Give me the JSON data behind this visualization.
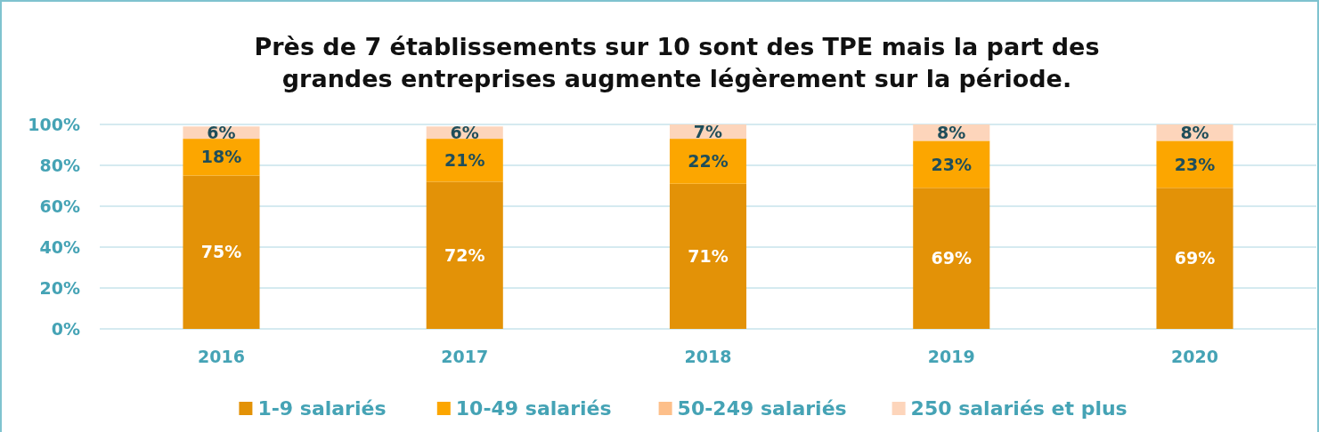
{
  "chart_data": {
    "type": "bar",
    "stacked": true,
    "title": "Près de 7 établissements sur 10 sont des TPE mais la part des grandes entreprises augmente légèrement sur la période.",
    "categories": [
      "2016",
      "2017",
      "2018",
      "2019",
      "2020"
    ],
    "series": [
      {
        "name": "1-9 salariés",
        "color": "#e39207",
        "values": [
          75,
          72,
          71,
          69,
          69
        ],
        "value_labels": [
          "75%",
          "72%",
          "71%",
          "69%",
          "69%"
        ]
      },
      {
        "name": "10-49 salariés",
        "color": "#fca600",
        "values": [
          18,
          21,
          22,
          23,
          23
        ],
        "value_labels": [
          "18%",
          "21%",
          "22%",
          "23%",
          "23%"
        ]
      },
      {
        "name": "50-249 salariés",
        "color": "#fdbf8a",
        "values": [
          null,
          null,
          null,
          null,
          null
        ]
      },
      {
        "name": "250 salariés et plus",
        "color": "#fdd5bb",
        "values": [
          6,
          6,
          7,
          8,
          8
        ],
        "value_labels": [
          "6%",
          "6%",
          "7%",
          "8%",
          "8%"
        ]
      }
    ],
    "ylim": [
      0,
      100
    ],
    "yticks": [
      {
        "value": 0,
        "label": "0%"
      },
      {
        "value": 20,
        "label": "20%"
      },
      {
        "value": 40,
        "label": "40%"
      },
      {
        "value": 60,
        "label": "60%"
      },
      {
        "value": 80,
        "label": "80%"
      },
      {
        "value": 100,
        "label": "100%"
      }
    ],
    "grid": "y",
    "legend": "bottom"
  }
}
